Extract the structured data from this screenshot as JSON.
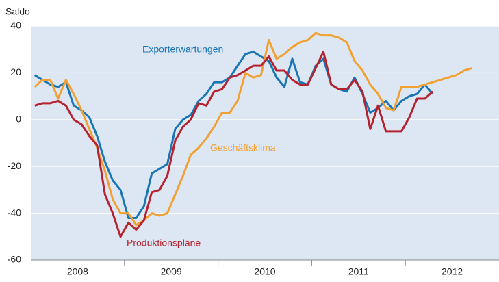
{
  "chart_data": {
    "type": "line",
    "y_label": "Saldo",
    "x": [
      2008.042,
      2008.125,
      2008.208,
      2008.292,
      2008.375,
      2008.458,
      2008.542,
      2008.625,
      2008.708,
      2008.792,
      2008.875,
      2008.958,
      2009.042,
      2009.125,
      2009.208,
      2009.292,
      2009.375,
      2009.458,
      2009.542,
      2009.625,
      2009.708,
      2009.792,
      2009.875,
      2009.958,
      2010.042,
      2010.125,
      2010.208,
      2010.292,
      2010.375,
      2010.458,
      2010.542,
      2010.625,
      2010.708,
      2010.792,
      2010.875,
      2010.958,
      2011.042,
      2011.125,
      2011.208,
      2011.292,
      2011.375,
      2011.458,
      2011.542,
      2011.625,
      2011.708,
      2011.792,
      2011.875,
      2011.958,
      2012.042,
      2012.125,
      2012.208,
      2012.292,
      2012.375,
      2012.458,
      2012.542,
      2012.625,
      2012.708
    ],
    "series": [
      {
        "name": "Exporterwartungen",
        "color": "#1a75b4",
        "values": [
          19,
          17,
          15,
          14,
          16,
          6,
          4,
          1,
          -7,
          -18,
          -26,
          -30,
          -42,
          -42,
          -37,
          -23,
          -21,
          -19,
          -4,
          0,
          2,
          8,
          11,
          16,
          16,
          18,
          23,
          28,
          29,
          27,
          25,
          18,
          14,
          26,
          16,
          15,
          23,
          26,
          15,
          13,
          12,
          18,
          11,
          3,
          5,
          8,
          4,
          8,
          10,
          11,
          15,
          11,
          null,
          null,
          null,
          null,
          null
        ]
      },
      {
        "name": "Geschäftsklima",
        "color": "#f2a031",
        "values": [
          14,
          17,
          17,
          9,
          17,
          11,
          4,
          -4,
          -12,
          -22,
          -34,
          -40,
          -40,
          -45,
          -43,
          -40,
          -41,
          -40,
          -32,
          -24,
          -15,
          -12,
          -8,
          -3,
          3,
          3,
          8,
          20,
          18,
          19,
          34,
          26,
          28,
          31,
          33,
          34,
          37,
          36,
          36,
          35,
          33,
          25,
          21,
          15,
          11,
          5,
          4,
          14,
          14,
          14,
          15,
          16,
          17,
          18,
          19,
          21,
          22
        ]
      },
      {
        "name": "Produktionspläne",
        "color": "#b5232f",
        "values": [
          6,
          7,
          7,
          8,
          6,
          0,
          -2,
          -7,
          -11,
          -32,
          -40,
          -50,
          -44,
          -47,
          -43,
          -31,
          -30,
          -24,
          -9,
          -3,
          0,
          7,
          6,
          12,
          13,
          18,
          19,
          21,
          23,
          23,
          27,
          21,
          21,
          17,
          15,
          15,
          22,
          29,
          15,
          13,
          13,
          17,
          12,
          -4,
          6,
          -5,
          -5,
          -5,
          1,
          9,
          9,
          12,
          null,
          null,
          null,
          null,
          null
        ]
      }
    ],
    "xlim": [
      2008,
      2013
    ],
    "xticks": [
      {
        "value": 2008.5,
        "label": "2008"
      },
      {
        "value": 2009.5,
        "label": "2009"
      },
      {
        "value": 2010.5,
        "label": "2010"
      },
      {
        "value": 2011.5,
        "label": "2011"
      },
      {
        "value": 2012.5,
        "label": "2012"
      }
    ],
    "xtick_marks": [
      2009,
      2010,
      2011,
      2012
    ],
    "ylim": [
      -60,
      40
    ],
    "yticks": [
      -60,
      -40,
      -20,
      0,
      20,
      40
    ],
    "grid": true,
    "plot_background": "#dde6f3"
  }
}
